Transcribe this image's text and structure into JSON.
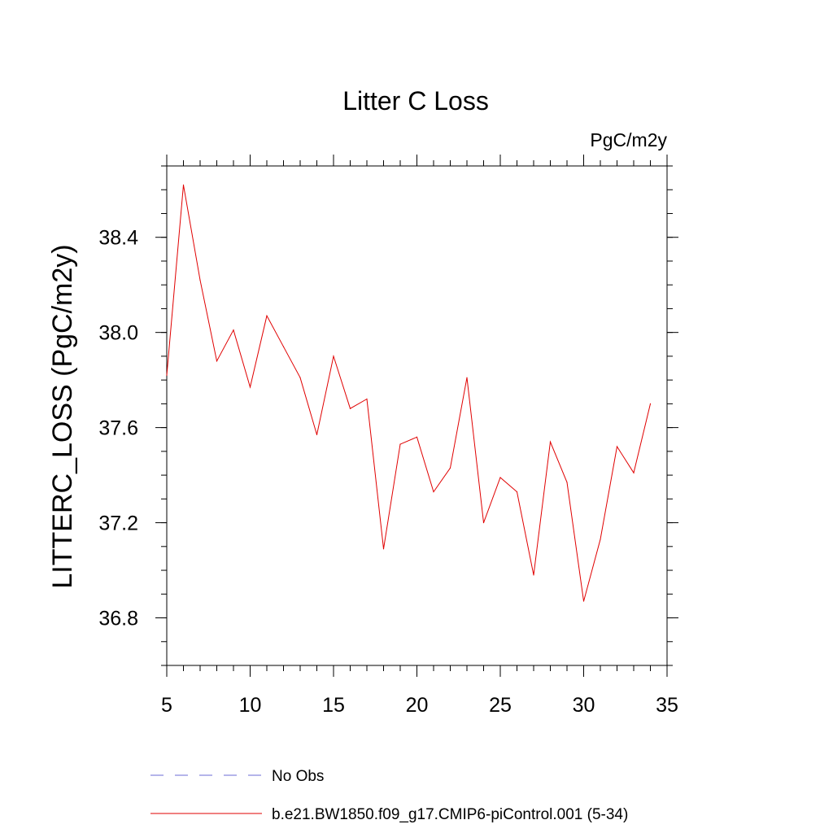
{
  "chart_data": {
    "type": "line",
    "title": "Litter C Loss",
    "units": "PgC/m2y",
    "xlabel": "",
    "ylabel": "LITTERC_LOSS  (PgC/m2y)",
    "xlim": [
      5,
      35
    ],
    "ylim": [
      36.6,
      38.7
    ],
    "xticks": [
      5,
      10,
      15,
      20,
      25,
      30,
      35
    ],
    "xtick_labels": [
      "5",
      "10",
      "15",
      "20",
      "25",
      "30",
      "35"
    ],
    "yticks": [
      36.8,
      37.2,
      37.6,
      38.0,
      38.4
    ],
    "ytick_labels": [
      "36.8",
      "37.2",
      "37.6",
      "38.0",
      "38.4"
    ],
    "grid": false,
    "legend_position": "bottom",
    "series": [
      {
        "name": "No Obs",
        "color": "#6b6bd6",
        "dash": "dashed",
        "x": [],
        "y": []
      },
      {
        "name": "b.e21.BW1850.f09_g17.CMIP6-piControl.001 (5-34)",
        "color": "#e00000",
        "dash": "solid",
        "x": [
          5,
          6,
          7,
          8,
          9,
          10,
          11,
          12,
          13,
          14,
          15,
          16,
          17,
          18,
          19,
          20,
          21,
          22,
          23,
          24,
          25,
          26,
          27,
          28,
          29,
          30,
          31,
          32,
          33,
          34
        ],
        "y": [
          37.82,
          38.62,
          38.22,
          37.88,
          38.01,
          37.77,
          38.07,
          37.94,
          37.81,
          37.57,
          37.9,
          37.68,
          37.72,
          37.09,
          37.53,
          37.56,
          37.33,
          37.43,
          37.81,
          37.2,
          37.39,
          37.33,
          36.98,
          37.54,
          37.37,
          36.87,
          37.13,
          37.52,
          37.41,
          37.7
        ]
      }
    ]
  }
}
